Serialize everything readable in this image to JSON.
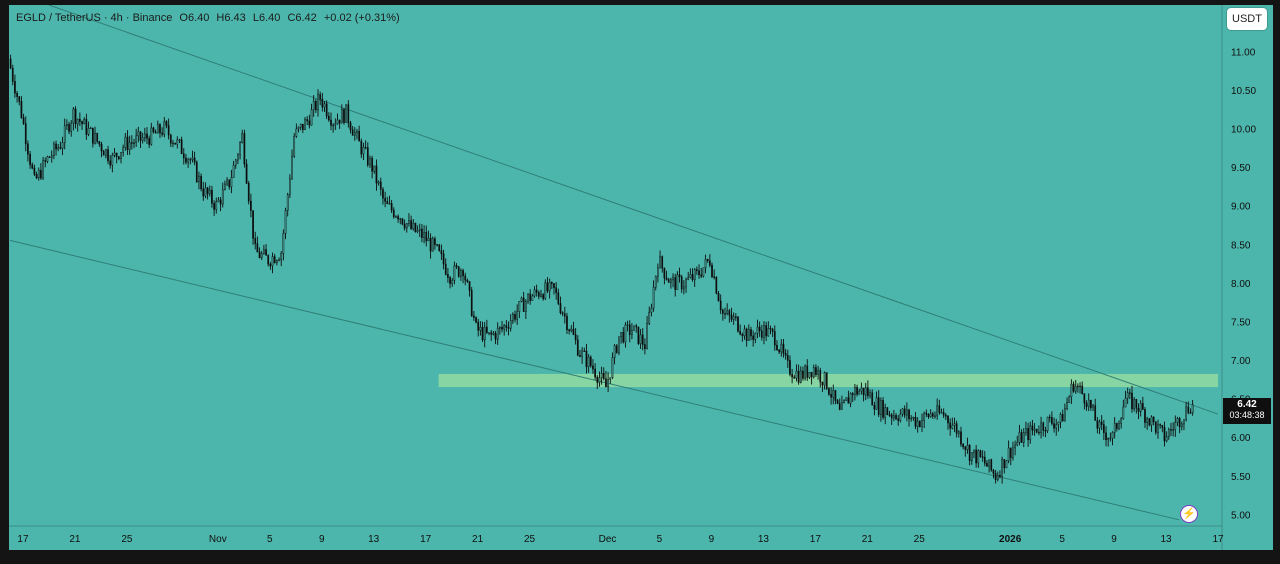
{
  "header": {
    "symbol": "EGLD / TetherUS · 4h · Binance",
    "open": "O6.40",
    "high": "H6.43",
    "low": "L6.40",
    "close": "C6.42",
    "change": "+0.02 (+0.31%)"
  },
  "toolbar": {
    "currency_label": "USDT"
  },
  "price_badge": {
    "price": "6.42",
    "countdown": "03:48:38"
  },
  "flash_icon": "lightning-icon",
  "colors": {
    "background": "#4db6ac",
    "candles": "#0d0d0d",
    "trendline": "#2e7f77",
    "zone": "#9fe2a0",
    "frame": "#141414"
  },
  "chart_data": {
    "type": "candlestick",
    "symbol": "EGLD / TetherUS",
    "interval": "4h",
    "exchange": "Binance",
    "ylim": [
      4.85,
      11.6
    ],
    "y_ticks": [
      11.0,
      10.5,
      10.0,
      9.5,
      9.0,
      8.5,
      8.0,
      7.5,
      7.0,
      6.5,
      6.0,
      5.5,
      5.0
    ],
    "y_tick_labels": [
      "11.00",
      "10.50",
      "10.00",
      "9.50",
      "9.00",
      "8.50",
      "8.00",
      "7.50",
      "7.00",
      "6.50",
      "6.00",
      "5.50",
      "5.00"
    ],
    "x_start_date": "2025-10-16",
    "x_end_date": "2026-01-17",
    "x_ticks": [
      {
        "date": "2025-10-17",
        "label": "17"
      },
      {
        "date": "2025-10-21",
        "label": "21"
      },
      {
        "date": "2025-10-25",
        "label": "25"
      },
      {
        "date": "2025-11-01",
        "label": "Nov"
      },
      {
        "date": "2025-11-05",
        "label": "5"
      },
      {
        "date": "2025-11-09",
        "label": "9"
      },
      {
        "date": "2025-11-13",
        "label": "13"
      },
      {
        "date": "2025-11-17",
        "label": "17"
      },
      {
        "date": "2025-11-21",
        "label": "21"
      },
      {
        "date": "2025-11-25",
        "label": "25"
      },
      {
        "date": "2025-12-01",
        "label": "Dec"
      },
      {
        "date": "2025-12-05",
        "label": "5"
      },
      {
        "date": "2025-12-09",
        "label": "9"
      },
      {
        "date": "2025-12-13",
        "label": "13"
      },
      {
        "date": "2025-12-17",
        "label": "17"
      },
      {
        "date": "2025-12-21",
        "label": "21"
      },
      {
        "date": "2025-12-25",
        "label": "25"
      },
      {
        "date": "2026-01-01",
        "label": "2026"
      },
      {
        "date": "2026-01-05",
        "label": "5"
      },
      {
        "date": "2026-01-09",
        "label": "9"
      },
      {
        "date": "2026-01-13",
        "label": "13"
      },
      {
        "date": "2026-01-17",
        "label": "17"
      }
    ],
    "price_path": [
      [
        "2025-10-16",
        10.9
      ],
      [
        "2025-10-17",
        10.2
      ],
      [
        "2025-10-18",
        9.3
      ],
      [
        "2025-10-19",
        9.6
      ],
      [
        "2025-10-20",
        9.8
      ],
      [
        "2025-10-21",
        10.2
      ],
      [
        "2025-10-22",
        10.0
      ],
      [
        "2025-10-23",
        9.8
      ],
      [
        "2025-10-24",
        9.6
      ],
      [
        "2025-10-25",
        9.8
      ],
      [
        "2025-10-27",
        9.9
      ],
      [
        "2025-10-28",
        10.0
      ],
      [
        "2025-10-29",
        9.8
      ],
      [
        "2025-10-30",
        9.6
      ],
      [
        "2025-10-31",
        9.2
      ],
      [
        "2025-11-01",
        9.0
      ],
      [
        "2025-11-02",
        9.3
      ],
      [
        "2025-11-03",
        9.9
      ],
      [
        "2025-11-04",
        8.4
      ],
      [
        "2025-11-05",
        8.3
      ],
      [
        "2025-11-06",
        8.4
      ],
      [
        "2025-11-07",
        9.9
      ],
      [
        "2025-11-08",
        10.1
      ],
      [
        "2025-11-09",
        10.4
      ],
      [
        "2025-11-10",
        10.1
      ],
      [
        "2025-11-11",
        10.2
      ],
      [
        "2025-11-12",
        9.8
      ],
      [
        "2025-11-13",
        9.5
      ],
      [
        "2025-11-14",
        9.0
      ],
      [
        "2025-11-15",
        8.9
      ],
      [
        "2025-11-16",
        8.7
      ],
      [
        "2025-11-17",
        8.6
      ],
      [
        "2025-11-18",
        8.4
      ],
      [
        "2025-11-19",
        8.1
      ],
      [
        "2025-11-20",
        8.2
      ],
      [
        "2025-11-21",
        7.4
      ],
      [
        "2025-11-22",
        7.3
      ],
      [
        "2025-11-23",
        7.4
      ],
      [
        "2025-11-24",
        7.6
      ],
      [
        "2025-11-25",
        7.8
      ],
      [
        "2025-11-26",
        7.9
      ],
      [
        "2025-11-27",
        7.9
      ],
      [
        "2025-11-28",
        7.5
      ],
      [
        "2025-11-29",
        7.1
      ],
      [
        "2025-11-30",
        6.9
      ],
      [
        "2025-12-01",
        6.65
      ],
      [
        "2025-12-02",
        7.3
      ],
      [
        "2025-12-03",
        7.4
      ],
      [
        "2025-12-04",
        7.2
      ],
      [
        "2025-12-05",
        8.3
      ],
      [
        "2025-12-06",
        8.0
      ],
      [
        "2025-12-07",
        8.0
      ],
      [
        "2025-12-08",
        8.1
      ],
      [
        "2025-12-09",
        8.3
      ],
      [
        "2025-12-10",
        7.6
      ],
      [
        "2025-12-11",
        7.5
      ],
      [
        "2025-12-12",
        7.3
      ],
      [
        "2025-12-13",
        7.4
      ],
      [
        "2025-12-14",
        7.3
      ],
      [
        "2025-12-15",
        6.9
      ],
      [
        "2025-12-16",
        6.8
      ],
      [
        "2025-12-17",
        6.9
      ],
      [
        "2025-12-18",
        6.7
      ],
      [
        "2025-12-19",
        6.3
      ],
      [
        "2025-12-20",
        6.6
      ],
      [
        "2025-12-21",
        6.6
      ],
      [
        "2025-12-22",
        6.4
      ],
      [
        "2025-12-23",
        6.3
      ],
      [
        "2025-12-24",
        6.3
      ],
      [
        "2025-12-25",
        6.2
      ],
      [
        "2025-12-26",
        6.3
      ],
      [
        "2025-12-27",
        6.3
      ],
      [
        "2025-12-28",
        6.1
      ],
      [
        "2025-12-29",
        5.8
      ],
      [
        "2025-12-30",
        5.7
      ],
      [
        "2025-12-31",
        5.5
      ],
      [
        "2026-01-01",
        5.8
      ],
      [
        "2026-01-02",
        6.0
      ],
      [
        "2026-01-03",
        6.1
      ],
      [
        "2026-01-04",
        6.2
      ],
      [
        "2026-01-05",
        6.2
      ],
      [
        "2026-01-06",
        6.7
      ],
      [
        "2026-01-07",
        6.5
      ],
      [
        "2026-01-08",
        6.1
      ],
      [
        "2026-01-09",
        6.0
      ],
      [
        "2026-01-10",
        6.5
      ],
      [
        "2026-01-11",
        6.4
      ],
      [
        "2026-01-12",
        6.2
      ],
      [
        "2026-01-13",
        6.0
      ],
      [
        "2026-01-14",
        6.2
      ],
      [
        "2026-01-15",
        6.42
      ]
    ],
    "last_price": 6.42,
    "annotations": {
      "upper_trendline": [
        [
          "2025-10-19",
          11.6
        ],
        [
          "2026-01-17",
          6.3
        ]
      ],
      "lower_trendline": [
        [
          "2025-10-16",
          8.55
        ],
        [
          "2026-01-14",
          4.93
        ]
      ],
      "horizontal_zone": {
        "x_from": "2025-11-18",
        "x_to": "2026-01-17",
        "y_low": 6.65,
        "y_high": 6.82
      }
    }
  }
}
